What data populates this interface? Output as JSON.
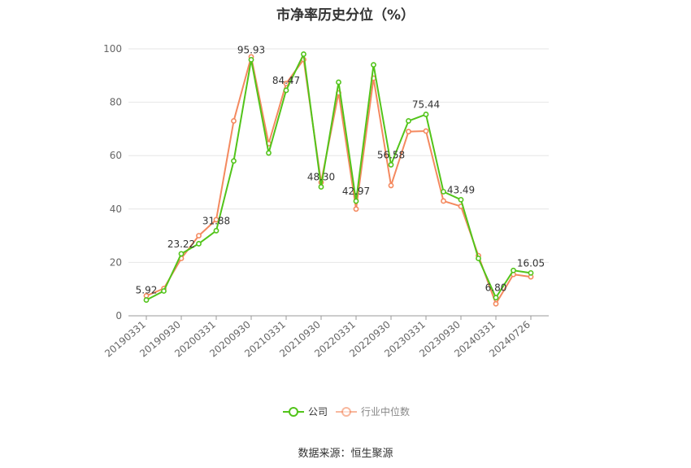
{
  "chart_data": {
    "type": "line",
    "title": "市净率历史分位（%）",
    "xlabel": "",
    "ylabel": "",
    "ylim": [
      0,
      100
    ],
    "yticks": [
      0,
      20,
      40,
      60,
      80,
      100
    ],
    "grid": true,
    "legend_position": "bottom",
    "x": [
      "20190331",
      "20190630",
      "20190930",
      "20191231",
      "20200331",
      "20200630",
      "20200930",
      "20201231",
      "20210331",
      "20210630",
      "20210930",
      "20211231",
      "20220331",
      "20220630",
      "20220930",
      "20221231",
      "20230331",
      "20230630",
      "20230930",
      "20231231",
      "20240331",
      "20240630",
      "20240726"
    ],
    "x_tick_labels": [
      "20190331",
      "20190930",
      "20200331",
      "20200930",
      "20210331",
      "20210930",
      "20220331",
      "20220930",
      "20230331",
      "20230930",
      "20240331",
      "20240726"
    ],
    "series": [
      {
        "name": "公司",
        "color": "#52c41a",
        "values": [
          5.92,
          9.3,
          23.22,
          27.0,
          31.88,
          58.0,
          95.93,
          61.0,
          84.47,
          98.0,
          48.3,
          87.5,
          42.97,
          94.0,
          56.58,
          73.0,
          75.44,
          46.5,
          43.49,
          21.5,
          6.8,
          17.0,
          16.05
        ]
      },
      {
        "name": "行业中位数",
        "color": "#f4895f",
        "values": [
          7.5,
          10.2,
          21.5,
          30.0,
          36.0,
          73.0,
          97.0,
          64.5,
          87.0,
          96.0,
          50.0,
          83.5,
          40.0,
          89.0,
          48.8,
          69.0,
          69.2,
          43.0,
          41.0,
          22.5,
          4.5,
          15.5,
          14.6
        ]
      }
    ],
    "data_labels": [
      {
        "index": 0,
        "text": "5.92"
      },
      {
        "index": 2,
        "text": "23.22"
      },
      {
        "index": 4,
        "text": "31.88"
      },
      {
        "index": 6,
        "text": "95.93"
      },
      {
        "index": 8,
        "text": "84.47"
      },
      {
        "index": 10,
        "text": "48.30"
      },
      {
        "index": 12,
        "text": "42.97"
      },
      {
        "index": 14,
        "text": "56.58"
      },
      {
        "index": 16,
        "text": "75.44"
      },
      {
        "index": 18,
        "text": "43.49"
      },
      {
        "index": 20,
        "text": "6.80"
      },
      {
        "index": 22,
        "text": "16.05"
      }
    ]
  },
  "source": "数据来源：恒生聚源"
}
